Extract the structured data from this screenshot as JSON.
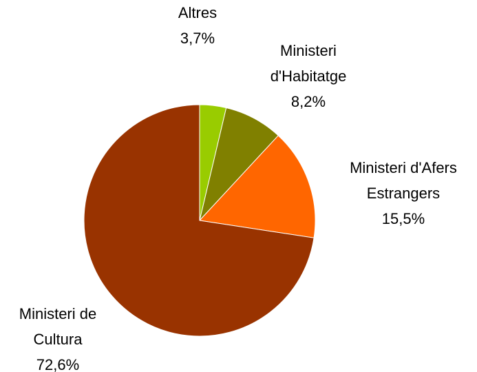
{
  "chart_data": {
    "type": "pie",
    "categories": [
      "Altres",
      "Ministeri d'Habitatge",
      "Ministeri d'Afers Estrangers",
      "Ministeri de Cultura"
    ],
    "values": [
      3.7,
      8.2,
      15.5,
      72.6
    ],
    "value_labels": [
      "3,7%",
      "8,2%",
      "15,5%",
      "72,6%"
    ],
    "colors": [
      "#99cc00",
      "#808000",
      "#ff6600",
      "#993300"
    ]
  }
}
